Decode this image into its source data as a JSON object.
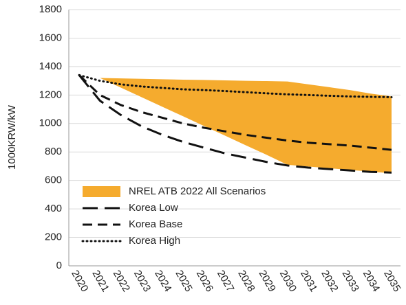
{
  "chart_data": {
    "type": "line",
    "y_label": "1000KRW/kW",
    "categories": [
      "2020",
      "2021",
      "2022",
      "2023",
      "2024",
      "2025",
      "2026",
      "2027",
      "2028",
      "2029",
      "2030",
      "2031",
      "2032",
      "2033",
      "2034",
      "2035"
    ],
    "ylim": [
      0,
      1800
    ],
    "yticks": [
      0,
      200,
      400,
      600,
      800,
      1000,
      1200,
      1400,
      1600,
      1800
    ],
    "grid": true,
    "legend": "lower left",
    "band": {
      "name": "NREL ATB 2022 All Scenarios",
      "color": "#f5ab2e",
      "upper": [
        null,
        1320,
        1317,
        1314,
        1311,
        1308,
        1306,
        1303,
        1300,
        1298,
        1295,
        1275,
        1255,
        1235,
        1210,
        1190
      ],
      "lower": [
        null,
        1320,
        1252,
        1185,
        1117,
        1050,
        982,
        915,
        847,
        780,
        710,
        698,
        686,
        674,
        662,
        650
      ]
    },
    "series": [
      {
        "name": "Korea Low",
        "color": "#111111",
        "dash": "22 10",
        "values": [
          1340,
          1160,
          1060,
          980,
          920,
          870,
          830,
          790,
          760,
          730,
          705,
          690,
          680,
          670,
          660,
          655
        ]
      },
      {
        "name": "Korea Base",
        "color": "#111111",
        "dash": "14 8",
        "values": [
          1340,
          1200,
          1130,
          1080,
          1040,
          1000,
          970,
          945,
          920,
          900,
          880,
          865,
          855,
          845,
          830,
          815
        ]
      },
      {
        "name": "Korea High",
        "color": "#111111",
        "dash": "1 5",
        "values": [
          1340,
          1300,
          1275,
          1260,
          1250,
          1240,
          1235,
          1228,
          1220,
          1212,
          1205,
          1200,
          1195,
          1190,
          1187,
          1185
        ]
      }
    ]
  }
}
